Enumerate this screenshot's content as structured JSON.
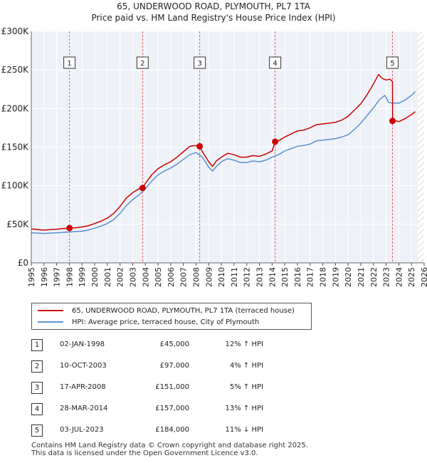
{
  "chart_data": {
    "type": "line",
    "title": "65, UNDERWOOD ROAD, PLYMOUTH, PL7 1TA",
    "subtitle": "Price paid vs. HM Land Registry's House Price Index (HPI)",
    "xlim": [
      1995,
      2026
    ],
    "ylim": [
      0,
      300000
    ],
    "y_ticks": [
      0,
      50000,
      100000,
      150000,
      200000,
      250000,
      300000
    ],
    "y_tick_labels": [
      "£0",
      "£50K",
      "£100K",
      "£150K",
      "£200K",
      "£250K",
      "£300K"
    ],
    "x_ticks": [
      1995,
      1996,
      1997,
      1998,
      1999,
      2000,
      2001,
      2002,
      2003,
      2004,
      2005,
      2006,
      2007,
      2008,
      2009,
      2010,
      2011,
      2012,
      2013,
      2014,
      2015,
      2016,
      2017,
      2018,
      2019,
      2020,
      2021,
      2022,
      2023,
      2024,
      2025,
      2026
    ],
    "x_tick_labels": [
      "1995",
      "1996",
      "1997",
      "1998",
      "1999",
      "2000",
      "2001",
      "2002",
      "2003",
      "2004",
      "2005",
      "2006",
      "2007",
      "2008",
      "2009",
      "2010",
      "2011",
      "2012",
      "2013",
      "2014",
      "2015",
      "2016",
      "2017",
      "2018",
      "2019",
      "2020",
      "2021",
      "2022",
      "2023",
      "2024",
      "2025",
      "2026"
    ],
    "grid": true,
    "future_shading_from": 2025.5,
    "series": [
      {
        "name": "65, UNDERWOOD ROAD, PLYMOUTH, PL7 1TA (terraced house)",
        "color": "#cc0000",
        "x": [
          1995.0,
          1995.5,
          1996.0,
          1996.5,
          1997.0,
          1997.5,
          1998.0,
          1998.5,
          1999.0,
          1999.5,
          2000.0,
          2000.5,
          2001.0,
          2001.5,
          2002.0,
          2002.5,
          2003.0,
          2003.5,
          2003.78,
          2004.0,
          2004.5,
          2005.0,
          2005.5,
          2006.0,
          2006.5,
          2007.0,
          2007.5,
          2008.0,
          2008.29,
          2008.5,
          2009.0,
          2009.3,
          2009.6,
          2010.0,
          2010.5,
          2011.0,
          2011.5,
          2012.0,
          2012.5,
          2013.0,
          2013.5,
          2014.0,
          2014.24,
          2014.5,
          2015.0,
          2015.5,
          2016.0,
          2016.5,
          2017.0,
          2017.5,
          2018.0,
          2018.5,
          2019.0,
          2019.5,
          2020.0,
          2020.5,
          2021.0,
          2021.5,
          2022.0,
          2022.4,
          2022.7,
          2023.0,
          2023.3,
          2023.5,
          2023.51,
          2023.8,
          2024.0,
          2024.5,
          2025.0,
          2025.3
        ],
        "values": [
          44000,
          43000,
          42500,
          43000,
          43500,
          44500,
          45000,
          45500,
          46500,
          48000,
          51000,
          54000,
          58000,
          64000,
          73000,
          84000,
          91000,
          96000,
          97000,
          103000,
          114000,
          122000,
          127000,
          131000,
          137000,
          144000,
          151000,
          152000,
          151000,
          144000,
          131000,
          125000,
          132000,
          137000,
          142000,
          140000,
          137000,
          137000,
          139000,
          138000,
          141000,
          145000,
          157000,
          158000,
          163000,
          167000,
          171000,
          172000,
          175000,
          179000,
          180000,
          181000,
          182000,
          185000,
          190000,
          198000,
          206000,
          218000,
          232000,
          244000,
          239000,
          237000,
          238000,
          235000,
          184000,
          184000,
          183000,
          187000,
          192000,
          196000
        ]
      },
      {
        "name": "HPI: Average price, terraced house, City of Plymouth",
        "color": "#5b8fd0",
        "x": [
          1995.0,
          1995.5,
          1996.0,
          1996.5,
          1997.0,
          1997.5,
          1998.0,
          1998.5,
          1999.0,
          1999.5,
          2000.0,
          2000.5,
          2001.0,
          2001.5,
          2002.0,
          2002.5,
          2003.0,
          2003.5,
          2004.0,
          2004.5,
          2005.0,
          2005.5,
          2006.0,
          2006.5,
          2007.0,
          2007.5,
          2008.0,
          2008.5,
          2009.0,
          2009.3,
          2009.6,
          2010.0,
          2010.5,
          2011.0,
          2011.5,
          2012.0,
          2012.5,
          2013.0,
          2013.5,
          2014.0,
          2014.5,
          2015.0,
          2015.5,
          2016.0,
          2016.5,
          2017.0,
          2017.5,
          2018.0,
          2018.5,
          2019.0,
          2019.5,
          2020.0,
          2020.5,
          2021.0,
          2021.5,
          2022.0,
          2022.5,
          2022.9,
          2023.2,
          2023.5,
          2024.0,
          2024.5,
          2025.0,
          2025.3
        ],
        "values": [
          39000,
          38500,
          38000,
          38500,
          39000,
          39500,
          40000,
          40500,
          41000,
          42500,
          45000,
          47500,
          51000,
          56000,
          64000,
          74000,
          82000,
          88000,
          96000,
          106000,
          114000,
          119000,
          123000,
          128000,
          134000,
          140000,
          143000,
          137000,
          124000,
          119000,
          125000,
          131000,
          135000,
          133000,
          130000,
          130000,
          132000,
          131000,
          133000,
          137000,
          140000,
          145000,
          148000,
          151000,
          152000,
          154000,
          158000,
          159000,
          160000,
          161000,
          163000,
          166000,
          173000,
          181000,
          191000,
          201000,
          212000,
          217000,
          208000,
          207000,
          207000,
          211000,
          217000,
          222000
        ]
      }
    ],
    "sale_markers": [
      {
        "label": "1",
        "x": 1998.01,
        "y": 45000
      },
      {
        "label": "2",
        "x": 2003.78,
        "y": 97000
      },
      {
        "label": "3",
        "x": 2008.29,
        "y": 151000
      },
      {
        "label": "4",
        "x": 2014.24,
        "y": 157000
      },
      {
        "label": "5",
        "x": 2023.5,
        "y": 184000
      }
    ]
  },
  "legend": {
    "property_label": "65, UNDERWOOD ROAD, PLYMOUTH, PL7 1TA (terraced house)",
    "hpi_label": "HPI: Average price, terraced house, City of Plymouth",
    "property_color": "#cc0000",
    "hpi_color": "#5b8fd0"
  },
  "sales": [
    {
      "num": "1",
      "date": "02-JAN-1998",
      "price": "£45,000",
      "diff": "12% ↑ HPI"
    },
    {
      "num": "2",
      "date": "10-OCT-2003",
      "price": "£97,000",
      "diff": "4% ↑ HPI"
    },
    {
      "num": "3",
      "date": "17-APR-2008",
      "price": "£151,000",
      "diff": "5% ↑ HPI"
    },
    {
      "num": "4",
      "date": "28-MAR-2014",
      "price": "£157,000",
      "diff": "13% ↑ HPI"
    },
    {
      "num": "5",
      "date": "03-JUL-2023",
      "price": "£184,000",
      "diff": "11% ↓ HPI"
    }
  ],
  "footer": {
    "line1": "Contains HM Land Registry data © Crown copyright and database right 2025.",
    "line2": "This data is licensed under the Open Government Licence v3.0."
  }
}
